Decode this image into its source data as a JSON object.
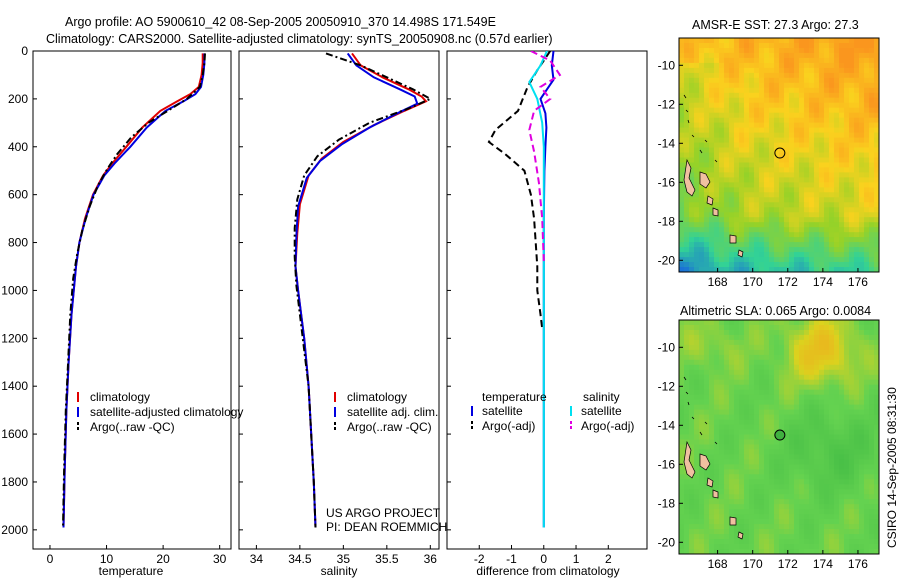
{
  "header": {
    "line1": "Argo profile: AO 5900610_42 08-Sep-2005 20050910_370 14.498S 171.549E",
    "line2": "Climatology: CARS2000. Satellite-adjusted climatology: synTS_20050908.nc (0.57d earlier)"
  },
  "credit": {
    "project": "US ARGO PROJECT",
    "pi": "PI: DEAN ROEMMICH",
    "stamp": "CSIRO 14-Sep-2005 08:31:30"
  },
  "colors": {
    "climatology": "#e00000",
    "satellite": "#0000e0",
    "argo": "#000000",
    "satellite_sal": "#00e0f0",
    "argo_sal": "#e000e0"
  },
  "chart_data": [
    {
      "type": "line",
      "xlabel": "temperature",
      "xlim": [
        -3,
        32
      ],
      "xticks": [
        "0",
        "10",
        "20",
        "30"
      ],
      "xtick_values": [
        0,
        10,
        20,
        30
      ],
      "ylim": [
        0,
        2080
      ],
      "yticks": [
        "0",
        "200",
        "400",
        "600",
        "800",
        "1000",
        "1200",
        "1400",
        "1600",
        "1800",
        "2000"
      ],
      "ytick_values": [
        0,
        200,
        400,
        600,
        800,
        1000,
        1200,
        1400,
        1600,
        1800,
        2000
      ],
      "y_reversed": true,
      "legend_placement": "bottom-right",
      "legend": [
        "climatology",
        "satellite-adjusted climatology",
        "Argo(..raw -QC)"
      ],
      "series": [
        {
          "name": "climatology",
          "style": "solid",
          "color": "#e00000",
          "x": [
            27.0,
            27.0,
            26.8,
            26.3,
            24.8,
            22.5,
            19.5,
            16.3,
            13.5,
            11.0,
            9.4,
            7.6,
            6.2,
            5.2,
            4.6,
            3.8,
            3.3,
            2.9,
            2.6,
            2.4
          ],
          "y": [
            10,
            50,
            100,
            150,
            180,
            210,
            250,
            320,
            400,
            470,
            520,
            600,
            700,
            800,
            900,
            1100,
            1300,
            1500,
            1750,
            1990
          ]
        },
        {
          "name": "satellite-adjusted climatology",
          "style": "solid",
          "color": "#0000e0",
          "x": [
            27.3,
            27.3,
            27.1,
            26.7,
            25.7,
            23.6,
            20.4,
            17.1,
            14.2,
            11.4,
            9.6,
            7.7,
            6.3,
            5.2,
            4.6,
            3.8,
            3.3,
            2.9,
            2.6,
            2.4
          ],
          "y": [
            10,
            50,
            100,
            150,
            180,
            210,
            250,
            320,
            400,
            470,
            520,
            600,
            700,
            800,
            900,
            1100,
            1300,
            1500,
            1750,
            1990
          ]
        },
        {
          "name": "Argo(..raw -QC)",
          "style": "dashdot",
          "color": "#000000",
          "x": [
            27.4,
            27.3,
            27.0,
            26.5,
            24.2,
            20.8,
            17.4,
            14.4,
            11.9,
            10.2,
            8.5,
            7.0,
            5.7,
            4.8,
            4.1,
            3.6,
            3.2,
            2.8,
            2.5,
            2.3
          ],
          "y": [
            10,
            50,
            100,
            150,
            200,
            250,
            300,
            360,
            430,
            490,
            560,
            650,
            750,
            850,
            950,
            1100,
            1300,
            1500,
            1750,
            1990
          ]
        }
      ]
    },
    {
      "type": "line",
      "xlabel": "salinity",
      "xlim": [
        33.8,
        36.1
      ],
      "xticks": [
        "34",
        "34.5",
        "35",
        "35.5",
        "36"
      ],
      "xtick_values": [
        34,
        34.5,
        35,
        35.5,
        36
      ],
      "ylim": [
        0,
        2080
      ],
      "y_reversed": true,
      "legend_placement": "bottom-right",
      "legend": [
        "climatology",
        "satellite adj. clim.",
        "Argo(..raw -QC)"
      ],
      "series": [
        {
          "name": "climatology",
          "style": "solid",
          "color": "#e00000",
          "x": [
            35.1,
            35.2,
            35.45,
            35.75,
            35.9,
            35.95,
            35.7,
            35.35,
            35.0,
            34.75,
            34.6,
            34.5,
            34.47,
            34.45,
            34.48,
            34.55,
            34.6,
            34.63,
            34.66,
            34.68
          ],
          "y": [
            10,
            60,
            110,
            160,
            190,
            210,
            250,
            310,
            380,
            450,
            520,
            640,
            760,
            900,
            1000,
            1200,
            1400,
            1600,
            1800,
            1990
          ]
        },
        {
          "name": "satellite adj. clim.",
          "style": "solid",
          "color": "#0000e0",
          "x": [
            35.05,
            35.15,
            35.35,
            35.65,
            35.82,
            35.85,
            35.62,
            35.3,
            34.98,
            34.73,
            34.58,
            34.48,
            34.46,
            34.45,
            34.48,
            34.55,
            34.6,
            34.63,
            34.66,
            34.68
          ],
          "y": [
            10,
            60,
            110,
            160,
            190,
            220,
            260,
            320,
            390,
            460,
            530,
            650,
            770,
            900,
            1000,
            1200,
            1400,
            1600,
            1800,
            1990
          ]
        },
        {
          "name": "Argo(..raw -QC)",
          "style": "dashdot",
          "color": "#000000",
          "x": [
            34.8,
            35.2,
            35.5,
            35.8,
            36.0,
            35.75,
            35.3,
            34.95,
            34.7,
            34.55,
            34.47,
            34.44,
            34.44,
            34.46,
            34.5,
            34.55,
            34.6,
            34.63,
            34.66,
            34.68
          ],
          "y": [
            10,
            60,
            110,
            160,
            200,
            240,
            300,
            370,
            440,
            520,
            620,
            740,
            860,
            980,
            1100,
            1250,
            1400,
            1600,
            1800,
            1990
          ]
        }
      ]
    },
    {
      "type": "line",
      "xlabel": "difference from climatology",
      "xlim": [
        -3,
        3.2
      ],
      "xticks": [
        "-2",
        "-1",
        "0",
        "1",
        "2"
      ],
      "xtick_values": [
        -2,
        -1,
        0,
        1,
        2
      ],
      "ylim": [
        0,
        2080
      ],
      "y_reversed": true,
      "legend_placement": "bottom",
      "legend_headers": [
        "temperature",
        "salinity"
      ],
      "legend": [
        "satellite",
        "Argo(-adj)",
        "satellite",
        "Argo(-adj)"
      ],
      "series": [
        {
          "name": "satellite",
          "group": "temperature",
          "style": "solid",
          "color": "#0000e0",
          "x": [
            0.3,
            0.25,
            0.3,
            0.1,
            -0.1,
            0.05,
            0.08,
            0.05,
            0.02,
            0.01,
            0.0,
            0.0,
            0.0,
            0.0,
            0.0,
            0.0
          ],
          "y": [
            0,
            60,
            120,
            160,
            200,
            260,
            320,
            400,
            500,
            600,
            700,
            900,
            1100,
            1300,
            1600,
            1990
          ]
        },
        {
          "name": "Argo(-adj)",
          "group": "temperature",
          "style": "dashed",
          "color": "#000000",
          "x": [
            0.2,
            -0.2,
            -0.5,
            -0.8,
            -1.5,
            -1.7,
            -1.2,
            -0.6,
            -0.4,
            -0.3,
            -0.25,
            -0.2,
            -0.2,
            -0.1,
            -0.05
          ],
          "y": [
            0,
            80,
            150,
            250,
            330,
            380,
            430,
            500,
            600,
            700,
            800,
            900,
            1000,
            1100,
            1160
          ]
        },
        {
          "name": "satellite",
          "group": "salinity",
          "style": "solid",
          "color": "#00e0f0",
          "x": [
            0.1,
            -0.1,
            -0.3,
            -0.45,
            -0.2,
            -0.05,
            0.0,
            0.0,
            0.0,
            0.0,
            0.0,
            0.0,
            0.0
          ],
          "y": [
            0,
            60,
            100,
            130,
            200,
            300,
            400,
            600,
            800,
            1100,
            1400,
            1700,
            1990
          ]
        },
        {
          "name": "Argo(-adj)",
          "group": "salinity",
          "style": "dashed",
          "color": "#e000e0",
          "x": [
            -0.4,
            0.2,
            0.5,
            -0.1,
            0.2,
            -0.3,
            -0.45,
            -0.3,
            -0.15,
            -0.05,
            0.0
          ],
          "y": [
            0,
            40,
            100,
            150,
            200,
            250,
            330,
            420,
            550,
            700,
            880
          ]
        }
      ]
    },
    {
      "type": "heatmap",
      "title": "AMSR-E SST: 27.3 Argo: 27.3",
      "xlim": [
        165.8,
        177.2
      ],
      "ylim": [
        -20.6,
        -8.6
      ],
      "xticks": [
        "168",
        "170",
        "172",
        "174",
        "176"
      ],
      "xtick_values": [
        168,
        170,
        172,
        174,
        176
      ],
      "yticks": [
        "-10",
        "-12",
        "-14",
        "-16",
        "-18",
        "-20"
      ],
      "ytick_values": [
        -10,
        -12,
        -14,
        -16,
        -18,
        -20
      ],
      "marker": {
        "lon": 171.549,
        "lat": -14.498
      }
    },
    {
      "type": "heatmap",
      "title": "Altimetric SLA: 0.065 Argo: 0.0084",
      "xlim": [
        165.8,
        177.2
      ],
      "ylim": [
        -20.6,
        -8.6
      ],
      "xticks": [
        "168",
        "170",
        "172",
        "174",
        "176"
      ],
      "xtick_values": [
        168,
        170,
        172,
        174,
        176
      ],
      "yticks": [
        "-10",
        "-12",
        "-14",
        "-16",
        "-18",
        "-20"
      ],
      "ytick_values": [
        -10,
        -12,
        -14,
        -16,
        -18,
        -20
      ],
      "marker": {
        "lon": 171.549,
        "lat": -14.498
      }
    }
  ]
}
